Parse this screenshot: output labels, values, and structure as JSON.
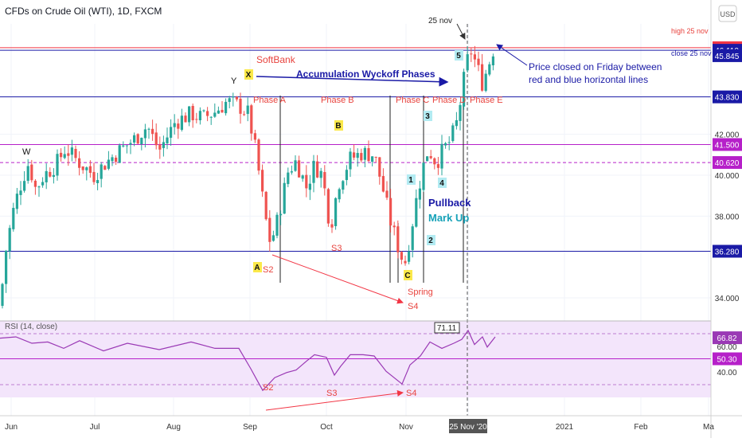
{
  "header": {
    "title": "CFDs on Crude Oil (WTI), 1D, FXCM",
    "currency": "USD"
  },
  "colors": {
    "up": "#26a69a",
    "down": "#ef5350",
    "red_line": "#f23645",
    "blue_line": "#1a1aa6",
    "magenta": "#b620c9",
    "rsi_line": "#9a39b5",
    "rsi_fill": "#f3e5fb",
    "label_yellow": "#fbe94a",
    "label_cyan": "#b2ebf2",
    "text_red": "#e8433e",
    "text_blue": "#1565c0",
    "axis_text": "#333333"
  },
  "chart_data": {
    "type": "candlestick",
    "symbol": "CFDs on Crude Oil (WTI)",
    "interval": "1D",
    "source": "FXCM",
    "price_axis": {
      "ticks": [
        "42.000",
        "40.000",
        "38.000",
        "34.000"
      ],
      "range": [
        33.3,
        47.4
      ]
    },
    "x_axis": {
      "ticks": [
        "Jun",
        "Jul",
        "Aug",
        "Sep",
        "Oct",
        "Nov",
        "25 Nov '20",
        "2021",
        "Feb",
        "Ma"
      ]
    },
    "horizontal_levels": [
      {
        "value": 46.235,
        "label": "46.235",
        "color": "red",
        "note": "high 25 nov"
      },
      {
        "value": 46.11,
        "label": "46.110",
        "color": "blue",
        "note": "close 25 nov"
      },
      {
        "value": 43.83,
        "label": "43.830",
        "color": "blue"
      },
      {
        "value": 41.5,
        "label": "41.500",
        "color": "magenta"
      },
      {
        "value": 40.62,
        "label": "40.620",
        "color": "magenta",
        "style": "dashed"
      },
      {
        "value": 36.28,
        "label": "36.280",
        "color": "blue"
      }
    ],
    "last_price": {
      "value": 45.845,
      "label": "45.845"
    },
    "annotations": {
      "title_label": "SoftBank",
      "phases_label": "Accumulation Wyckoff Phases",
      "price_note_line1": "Price closed on Friday between",
      "price_note_line2": "red and blue horizontal lines",
      "date_marker": "25 nov",
      "phase_labels": [
        "Phase A",
        "Phase B",
        "Phase C",
        "Phase D",
        "Phase E"
      ],
      "points": [
        "W",
        "Y",
        "X",
        "A",
        "S2",
        "B",
        "S3",
        "C",
        "Spring",
        "S4",
        "1",
        "2",
        "3",
        "4",
        "5"
      ],
      "pullback": "Pullback",
      "markup": "Mark Up"
    },
    "key_points": [
      {
        "label": "W",
        "date": "Jun",
        "price": 40.6
      },
      {
        "label": "Y",
        "date": "Sep",
        "price": 43.9
      },
      {
        "label": "S2",
        "date": "Sep",
        "price": 36.6
      },
      {
        "label": "S3",
        "date": "Oct",
        "price": 37.5
      },
      {
        "label": "S4",
        "date": "Nov",
        "price": 35.0
      },
      {
        "label": "high 25 nov",
        "date": "25 Nov",
        "price": 46.235
      }
    ],
    "rsi": {
      "name": "RSI (14, close)",
      "ticks": [
        "60.00",
        "40.00"
      ],
      "value": 66.82,
      "levels": [
        {
          "value": 70,
          "label": ""
        },
        {
          "value": 50.3,
          "label": "50.30"
        },
        {
          "value": 30,
          "label": ""
        }
      ],
      "marker": "71.11",
      "labels": [
        "S2",
        "S3",
        "S4"
      ]
    }
  }
}
